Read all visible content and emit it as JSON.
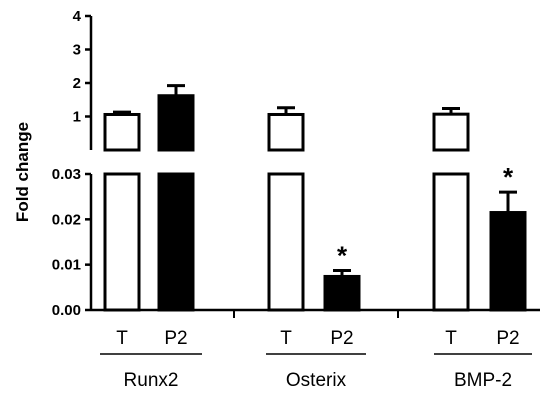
{
  "chart_data": {
    "type": "bar",
    "ylabel": "Fold change",
    "y_axis": {
      "broken": true,
      "lower_segment": {
        "ylim": [
          0,
          0.03
        ],
        "ticks": [
          "0.00",
          "0.01",
          "0.02",
          "0.03"
        ]
      },
      "upper_segment": {
        "ylim": [
          0,
          4
        ],
        "ticks": [
          "1",
          "2",
          "3",
          "4"
        ]
      }
    },
    "groups": [
      {
        "name": "Runx2",
        "bars": [
          {
            "label": "T",
            "value": 1.06,
            "error": 0.07,
            "fill": "white",
            "significant": false
          },
          {
            "label": "P2",
            "value": 1.62,
            "error": 0.3,
            "fill": "black",
            "significant": false
          }
        ]
      },
      {
        "name": "Osterix",
        "bars": [
          {
            "label": "T",
            "value": 1.06,
            "error": 0.2,
            "fill": "white",
            "significant": false
          },
          {
            "label": "P2",
            "value": 0.0074,
            "error": 0.0013,
            "fill": "black",
            "significant": true
          }
        ]
      },
      {
        "name": "BMP-2",
        "bars": [
          {
            "label": "T",
            "value": 1.07,
            "error": 0.17,
            "fill": "white",
            "significant": false
          },
          {
            "label": "P2",
            "value": 0.0215,
            "error": 0.0045,
            "fill": "black",
            "significant": true
          }
        ]
      }
    ],
    "significance_marker": "*",
    "colors": {
      "T": "#ffffff",
      "P2": "#000000",
      "axis": "#000000"
    }
  }
}
